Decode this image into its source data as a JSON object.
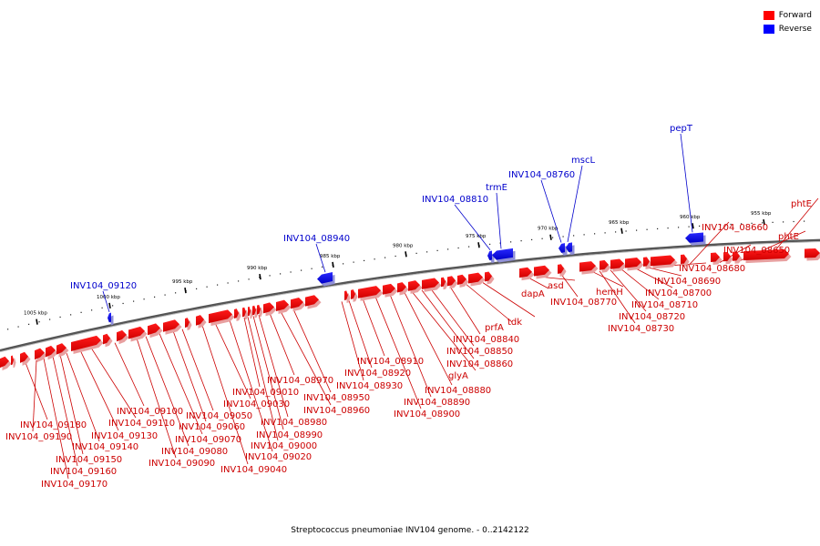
{
  "legend": {
    "forward_label": "Forward",
    "reverse_label": "Reverse",
    "forward_color": "#ff0000",
    "reverse_color": "#0000ff"
  },
  "caption": "Streptococcus pneumoniae INV104 genome. - 0..2142122",
  "colors": {
    "forward_label": "#cc0000",
    "reverse_label": "#0000cc",
    "backbone": "#777777"
  },
  "kbp_ticks": [
    "1005 kbp",
    "1000 kbp",
    "995 kbp",
    "990 kbp",
    "985 kbp",
    "980 kbp",
    "975 kbp",
    "970 kbp",
    "965 kbp",
    "960 kbp",
    "955 kbp"
  ],
  "forward_labels": [
    "INV104_09180",
    "INV104_09190",
    "INV104_09170",
    "INV104_09160",
    "INV104_09150",
    "INV104_09140",
    "INV104_09130",
    "INV104_09110",
    "INV104_09100",
    "INV104_09090",
    "INV104_09080",
    "INV104_09070",
    "INV104_09060",
    "INV104_09050",
    "INV104_09040",
    "INV104_09030",
    "INV104_09020",
    "INV104_09010",
    "INV104_09000",
    "INV104_08990",
    "INV104_08980",
    "INV104_08970",
    "INV104_08960",
    "INV104_08950",
    "INV104_08930",
    "INV104_08920",
    "INV104_08910",
    "INV104_08900",
    "INV104_08890",
    "INV104_08880",
    "glyA",
    "INV104_08860",
    "INV104_08850",
    "INV104_08840",
    "prfA",
    "tdk",
    "dapA",
    "asd",
    "INV104_08770",
    "hemH",
    "INV104_08730",
    "INV104_08720",
    "INV104_08710",
    "INV104_08700",
    "INV104_08690",
    "INV104_08680",
    "INV104_08660",
    "INV104_08650",
    "phtE",
    "phtE"
  ],
  "reverse_labels": [
    "INV104_09120",
    "INV104_08940",
    "INV104_08810",
    "trmE",
    "INV104_08760",
    "mscL",
    "pepT"
  ]
}
